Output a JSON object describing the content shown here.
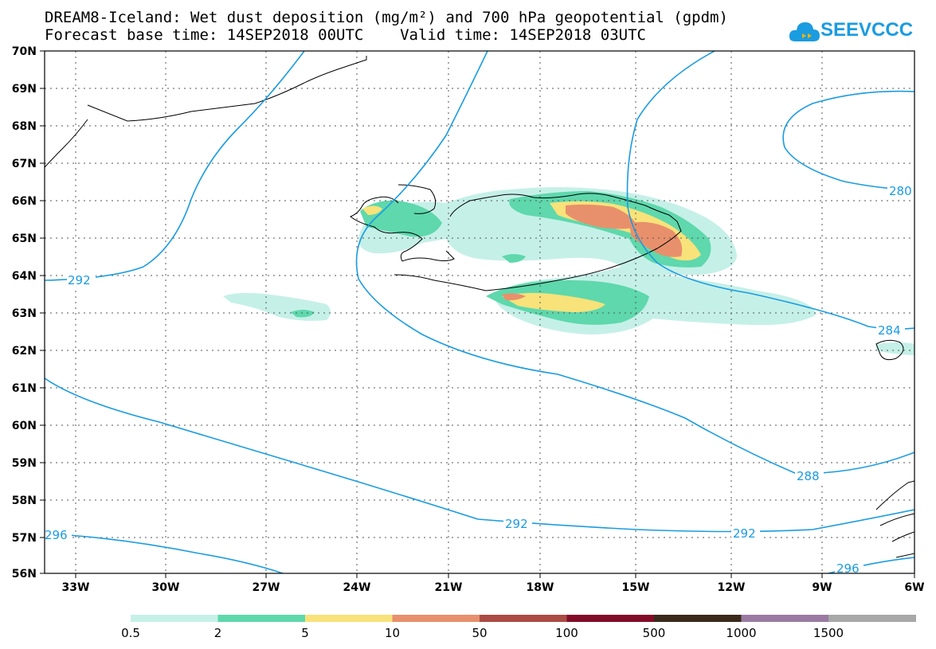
{
  "title_line1": "DREAM8-Iceland: Wet dust deposition (mg/m²) and 700 hPa geopotential (gpdm)",
  "title_line2": "Forecast base time: 14SEP2018 00UTC    Valid time: 14SEP2018 03UTC",
  "logo_text": "SEEVCCC",
  "logo_icon": "cloud-icon",
  "map": {
    "lat_labels": [
      "70N",
      "69N",
      "68N",
      "67N",
      "66N",
      "65N",
      "64N",
      "63N",
      "62N",
      "61N",
      "60N",
      "59N",
      "58N",
      "57N",
      "56N"
    ],
    "lon_labels": [
      "33W",
      "30W",
      "27W",
      "24W",
      "21W",
      "18W",
      "15W",
      "12W",
      "9W",
      "6W"
    ],
    "contour_labels": [
      "292",
      "292",
      "292",
      "296",
      "296",
      "288",
      "284",
      "280"
    ],
    "contour_color": "#1a9ce0"
  },
  "colorbar": {
    "colors": [
      "#c5f0e8",
      "#5ed8ac",
      "#f8e27a",
      "#e8906c",
      "#aa4c44",
      "#820c28",
      "#3a2a1c",
      "#9a7aa2",
      "#a8a8a8"
    ],
    "labels": [
      "0.5",
      "2",
      "5",
      "10",
      "50",
      "100",
      "500",
      "1000",
      "1500"
    ]
  }
}
